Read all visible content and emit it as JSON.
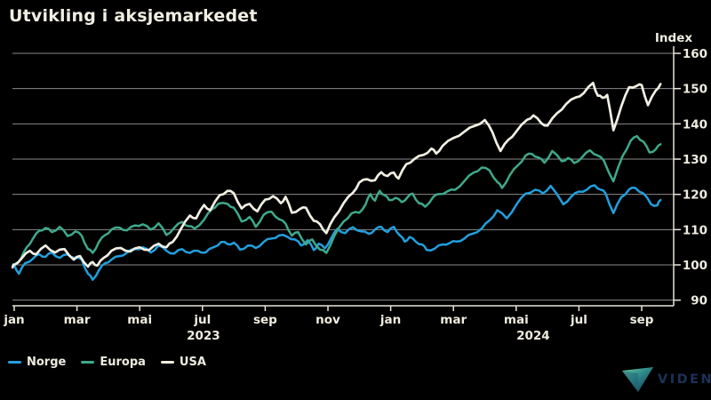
{
  "title": "Utvikling i aksjemarkedet",
  "legend": [
    {
      "label": "Norge",
      "color": "#229fdd"
    },
    {
      "label": "Europa",
      "color": "#3fa98b"
    },
    {
      "label": "USA",
      "color": "#f2efe3"
    }
  ],
  "logo": {
    "text": "VIDEN",
    "triangle_colors": [
      "#6fd0a8",
      "#143a5e"
    ]
  },
  "colors": {
    "background": "#000000",
    "text": "#efece0",
    "gridline": "#8a8a8a",
    "axis": "#e8e5d9"
  },
  "chart_data": {
    "type": "line",
    "title": "Utvikling i aksjemarkedet",
    "xlabel": "",
    "ylabel": "Index",
    "ylim": [
      88,
      162
    ],
    "grid": "horizontal",
    "legend_position": "bottom-left",
    "y_ticks": [
      90,
      100,
      110,
      120,
      130,
      140,
      150,
      160
    ],
    "x_unit": "months since 2023-01-01",
    "x_ticks": [
      {
        "label": "jan",
        "t": 0
      },
      {
        "label": "mar",
        "t": 2
      },
      {
        "label": "mai",
        "t": 4
      },
      {
        "label": "jul",
        "t": 6
      },
      {
        "label": "sep",
        "t": 8
      },
      {
        "label": "nov",
        "t": 10
      },
      {
        "label": "jan",
        "t": 12
      },
      {
        "label": "mar",
        "t": 14
      },
      {
        "label": "mai",
        "t": 16
      },
      {
        "label": "jul",
        "t": 18
      },
      {
        "label": "sep",
        "t": 20
      }
    ],
    "year_labels": [
      {
        "label": "2023",
        "t": 6.03
      },
      {
        "label": "2024",
        "t": 16.54
      }
    ],
    "series": [
      {
        "name": "Norge",
        "color": "#229fdd",
        "width": 2.5,
        "points": [
          [
            -0.05,
            99.8
          ],
          [
            0,
            100
          ],
          [
            0.15,
            97.5
          ],
          [
            0.35,
            100.5
          ],
          [
            0.6,
            101.8
          ],
          [
            0.8,
            103
          ],
          [
            1,
            102.3
          ],
          [
            1.2,
            103.5
          ],
          [
            1.45,
            102
          ],
          [
            1.7,
            103
          ],
          [
            1.95,
            102
          ],
          [
            2.15,
            101.5
          ],
          [
            2.35,
            97.5
          ],
          [
            2.5,
            95.8
          ],
          [
            2.7,
            98.5
          ],
          [
            2.9,
            100.5
          ],
          [
            3.1,
            101.5
          ],
          [
            3.35,
            102.5
          ],
          [
            3.6,
            103.5
          ],
          [
            3.85,
            104.5
          ],
          [
            4.1,
            105
          ],
          [
            4.35,
            103.5
          ],
          [
            4.6,
            105.5
          ],
          [
            4.85,
            104
          ],
          [
            5.1,
            103.2
          ],
          [
            5.35,
            104.5
          ],
          [
            5.6,
            103.4
          ],
          [
            5.85,
            104
          ],
          [
            6.1,
            103.5
          ],
          [
            6.35,
            105
          ],
          [
            6.6,
            106.5
          ],
          [
            6.8,
            105.9
          ],
          [
            7,
            106.3
          ],
          [
            7.2,
            104.3
          ],
          [
            7.45,
            105.5
          ],
          [
            7.7,
            104.8
          ],
          [
            7.95,
            106.5
          ],
          [
            8.2,
            107.5
          ],
          [
            8.45,
            108.4
          ],
          [
            8.7,
            108
          ],
          [
            8.95,
            107.2
          ],
          [
            9.15,
            105.5
          ],
          [
            9.35,
            107
          ],
          [
            9.55,
            104.2
          ],
          [
            9.7,
            106
          ],
          [
            9.9,
            104.7
          ],
          [
            10.1,
            107.5
          ],
          [
            10.3,
            110.2
          ],
          [
            10.55,
            109
          ],
          [
            10.8,
            110.7
          ],
          [
            11.05,
            109.5
          ],
          [
            11.3,
            108.8
          ],
          [
            11.5,
            110
          ],
          [
            11.7,
            110.8
          ],
          [
            11.9,
            109.3
          ],
          [
            12.1,
            110.8
          ],
          [
            12.3,
            108.3
          ],
          [
            12.45,
            106.6
          ],
          [
            12.6,
            107.9
          ],
          [
            12.8,
            106.6
          ],
          [
            13,
            105.8
          ],
          [
            13.15,
            104.2
          ],
          [
            13.4,
            104.6
          ],
          [
            13.65,
            105.8
          ],
          [
            13.9,
            106.3
          ],
          [
            14.1,
            106.6
          ],
          [
            14.35,
            107.5
          ],
          [
            14.6,
            108.8
          ],
          [
            14.9,
            110.3
          ],
          [
            15.15,
            112.6
          ],
          [
            15.4,
            115.5
          ],
          [
            15.7,
            113.2
          ],
          [
            16,
            117
          ],
          [
            16.3,
            120.2
          ],
          [
            16.6,
            121.3
          ],
          [
            16.85,
            120.3
          ],
          [
            17.1,
            122.4
          ],
          [
            17.5,
            117.2
          ],
          [
            17.75,
            119.3
          ],
          [
            18,
            120.8
          ],
          [
            18.25,
            121.3
          ],
          [
            18.5,
            122.6
          ],
          [
            18.7,
            121.3
          ],
          [
            18.85,
            120.3
          ],
          [
            19.1,
            114.7
          ],
          [
            19.35,
            119.2
          ],
          [
            19.6,
            121.4
          ],
          [
            19.8,
            121.8
          ],
          [
            20.05,
            120.3
          ],
          [
            20.3,
            117.2
          ],
          [
            20.5,
            116.9
          ],
          [
            20.6,
            118.4
          ]
        ]
      },
      {
        "name": "Europa",
        "color": "#3fa98b",
        "width": 2.5,
        "points": [
          [
            -0.05,
            99.5
          ],
          [
            0,
            100
          ],
          [
            0.2,
            101.5
          ],
          [
            0.4,
            105
          ],
          [
            0.6,
            107.5
          ],
          [
            0.8,
            109.7
          ],
          [
            1,
            110.5
          ],
          [
            1.2,
            109.3
          ],
          [
            1.45,
            110.8
          ],
          [
            1.7,
            108.2
          ],
          [
            1.95,
            109.5
          ],
          [
            2.15,
            108.3
          ],
          [
            2.35,
            104.5
          ],
          [
            2.5,
            103.4
          ],
          [
            2.7,
            106.5
          ],
          [
            2.9,
            108.5
          ],
          [
            3.1,
            110
          ],
          [
            3.35,
            110.6
          ],
          [
            3.6,
            109.8
          ],
          [
            3.85,
            111.2
          ],
          [
            4.1,
            111.5
          ],
          [
            4.35,
            110
          ],
          [
            4.6,
            111.8
          ],
          [
            4.85,
            108.5
          ],
          [
            5.1,
            110.5
          ],
          [
            5.35,
            112.2
          ],
          [
            5.55,
            111
          ],
          [
            5.75,
            110.3
          ],
          [
            6.05,
            112.8
          ],
          [
            6.3,
            115.8
          ],
          [
            6.5,
            117.3
          ],
          [
            6.8,
            117.3
          ],
          [
            7,
            116.2
          ],
          [
            7.25,
            112.3
          ],
          [
            7.5,
            113.6
          ],
          [
            7.7,
            110.8
          ],
          [
            7.95,
            114.2
          ],
          [
            8.2,
            115.1
          ],
          [
            8.45,
            112.9
          ],
          [
            8.65,
            111.7
          ],
          [
            8.85,
            108.3
          ],
          [
            9.05,
            109.3
          ],
          [
            9.3,
            105.8
          ],
          [
            9.5,
            107.2
          ],
          [
            9.75,
            104.3
          ],
          [
            9.95,
            103.4
          ],
          [
            10.2,
            108.2
          ],
          [
            10.5,
            112.3
          ],
          [
            10.75,
            114.6
          ],
          [
            11,
            114.8
          ],
          [
            11.2,
            117.2
          ],
          [
            11.35,
            120.1
          ],
          [
            11.5,
            118.2
          ],
          [
            11.65,
            121
          ],
          [
            11.8,
            119.8
          ],
          [
            11.95,
            118.4
          ],
          [
            12.15,
            119
          ],
          [
            12.35,
            117.8
          ],
          [
            12.55,
            119.3
          ],
          [
            12.7,
            120.2
          ],
          [
            12.9,
            117.5
          ],
          [
            13.1,
            116.5
          ],
          [
            13.35,
            119.2
          ],
          [
            13.55,
            120.1
          ],
          [
            13.8,
            120.8
          ],
          [
            14.05,
            121.3
          ],
          [
            14.35,
            123.8
          ],
          [
            14.65,
            126.2
          ],
          [
            14.9,
            127.6
          ],
          [
            15.15,
            126.8
          ],
          [
            15.4,
            123.5
          ],
          [
            15.55,
            121.8
          ],
          [
            15.8,
            125.5
          ],
          [
            16.05,
            128.2
          ],
          [
            16.3,
            131
          ],
          [
            16.5,
            131.5
          ],
          [
            16.7,
            130.5
          ],
          [
            16.9,
            129
          ],
          [
            17.15,
            132.3
          ],
          [
            17.45,
            129.4
          ],
          [
            17.65,
            130.3
          ],
          [
            17.85,
            128.9
          ],
          [
            18.1,
            130.5
          ],
          [
            18.35,
            132.5
          ],
          [
            18.6,
            131
          ],
          [
            18.8,
            129.5
          ],
          [
            19.1,
            123.7
          ],
          [
            19.4,
            131
          ],
          [
            19.65,
            135.2
          ],
          [
            19.85,
            136.5
          ],
          [
            20.05,
            135
          ],
          [
            20.25,
            131.9
          ],
          [
            20.45,
            132.8
          ],
          [
            20.6,
            134.2
          ]
        ]
      },
      {
        "name": "USA",
        "color": "#f2efe3",
        "width": 2.7,
        "points": [
          [
            -0.05,
            99.3
          ],
          [
            0,
            100
          ],
          [
            0.25,
            102
          ],
          [
            0.5,
            104
          ],
          [
            0.7,
            103
          ],
          [
            1,
            105.5
          ],
          [
            1.3,
            103.5
          ],
          [
            1.6,
            104.5
          ],
          [
            1.9,
            101.5
          ],
          [
            2.1,
            102.5
          ],
          [
            2.35,
            99.5
          ],
          [
            2.5,
            100.8
          ],
          [
            2.65,
            99.8
          ],
          [
            2.85,
            102
          ],
          [
            3.1,
            104
          ],
          [
            3.4,
            104.8
          ],
          [
            3.7,
            103.8
          ],
          [
            4,
            105
          ],
          [
            4.3,
            104.2
          ],
          [
            4.6,
            106
          ],
          [
            4.85,
            105
          ],
          [
            5.05,
            106.5
          ],
          [
            5.3,
            110
          ],
          [
            5.6,
            114
          ],
          [
            5.8,
            113.2
          ],
          [
            6.05,
            117
          ],
          [
            6.25,
            115.5
          ],
          [
            6.55,
            119.8
          ],
          [
            6.8,
            121
          ],
          [
            7,
            120.3
          ],
          [
            7.25,
            116
          ],
          [
            7.5,
            117.3
          ],
          [
            7.75,
            115.2
          ],
          [
            8,
            118.5
          ],
          [
            8.25,
            119.5
          ],
          [
            8.5,
            117.5
          ],
          [
            8.65,
            119.3
          ],
          [
            8.85,
            114.8
          ],
          [
            9.1,
            115.8
          ],
          [
            9.3,
            116.2
          ],
          [
            9.55,
            112.5
          ],
          [
            9.75,
            111.5
          ],
          [
            9.95,
            109
          ],
          [
            10.2,
            113.5
          ],
          [
            10.5,
            117.5
          ],
          [
            10.8,
            120.5
          ],
          [
            11,
            123.4
          ],
          [
            11.25,
            124.3
          ],
          [
            11.5,
            124
          ],
          [
            11.7,
            126.3
          ],
          [
            11.9,
            125.2
          ],
          [
            12.1,
            126.2
          ],
          [
            12.25,
            124.5
          ],
          [
            12.5,
            128.6
          ],
          [
            12.75,
            130
          ],
          [
            13.05,
            131.2
          ],
          [
            13.3,
            133
          ],
          [
            13.45,
            131.6
          ],
          [
            13.65,
            133.7
          ],
          [
            14,
            136
          ],
          [
            14.35,
            137.8
          ],
          [
            14.7,
            139.5
          ],
          [
            15,
            141.1
          ],
          [
            15.25,
            137.5
          ],
          [
            15.5,
            132.3
          ],
          [
            15.75,
            135.5
          ],
          [
            16,
            137.8
          ],
          [
            16.35,
            141.2
          ],
          [
            16.55,
            142.4
          ],
          [
            16.8,
            140.2
          ],
          [
            17,
            139.5
          ],
          [
            17.3,
            143
          ],
          [
            17.6,
            145.7
          ],
          [
            17.9,
            147.5
          ],
          [
            18.15,
            148.7
          ],
          [
            18.45,
            151.6
          ],
          [
            18.6,
            148
          ],
          [
            18.75,
            147.4
          ],
          [
            18.9,
            148.2
          ],
          [
            19.1,
            138.2
          ],
          [
            19.35,
            145
          ],
          [
            19.6,
            150.4
          ],
          [
            19.85,
            150.8
          ],
          [
            20,
            151
          ],
          [
            20.2,
            145.3
          ],
          [
            20.45,
            149.5
          ],
          [
            20.6,
            151.3
          ]
        ]
      }
    ]
  }
}
